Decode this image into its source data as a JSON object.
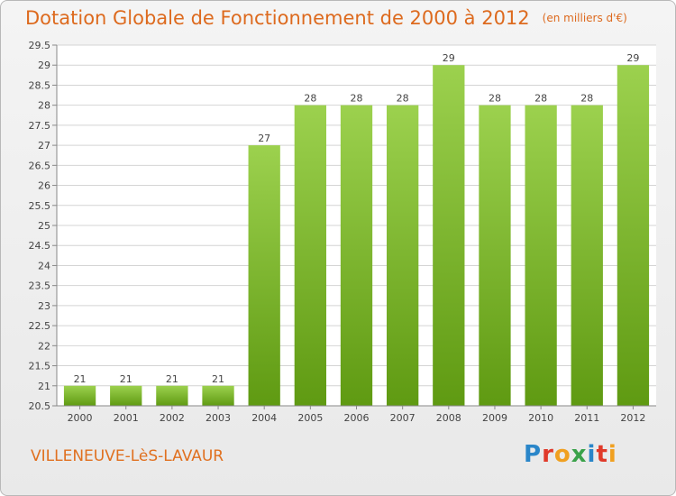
{
  "header": {
    "title": "Dotation Globale de Fonctionnement de 2000 à 2012",
    "unit": "(en milliers d'€)"
  },
  "footer": {
    "commune": "VILLENEUVE-LèS-LAVAUR",
    "logo": "Proxiti"
  },
  "colors": {
    "bar_top": "#9cd14e",
    "bar_bottom": "#5f9a12",
    "title": "#dd6a1e",
    "grid": "#d4d4d4"
  },
  "chart_data": {
    "type": "bar",
    "title": "Dotation Globale de Fonctionnement de 2000 à 2012",
    "xlabel": "",
    "ylabel": "",
    "categories": [
      "2000",
      "2001",
      "2002",
      "2003",
      "2004",
      "2005",
      "2006",
      "2007",
      "2008",
      "2009",
      "2010",
      "2011",
      "2012"
    ],
    "values": [
      21,
      21,
      21,
      21,
      27,
      28,
      28,
      28,
      29,
      28,
      28,
      28,
      29
    ],
    "ylim": [
      20.5,
      29.5
    ],
    "yticks": [
      "20.5",
      "21",
      "21.5",
      "22",
      "22.5",
      "23",
      "23.5",
      "24",
      "24.5",
      "25",
      "25.5",
      "26",
      "26.5",
      "27",
      "27.5",
      "28",
      "28.5",
      "29",
      "29.5"
    ],
    "grid": true,
    "legend": "none"
  }
}
